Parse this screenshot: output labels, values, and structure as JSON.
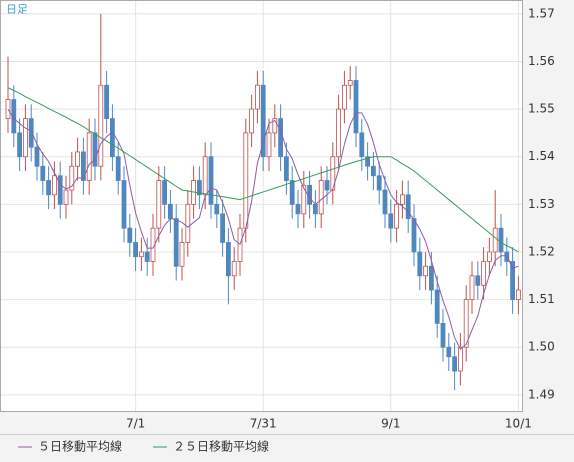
{
  "chart_data": {
    "type": "candlestick",
    "label": "日足",
    "categories": [
      null,
      null,
      null,
      null,
      null,
      null,
      null,
      null,
      null,
      null,
      null,
      null,
      null,
      null,
      null,
      null,
      null,
      null,
      null,
      null,
      null,
      null,
      "7/1",
      null,
      null,
      null,
      null,
      null,
      null,
      null,
      null,
      null,
      null,
      null,
      null,
      null,
      null,
      null,
      null,
      null,
      null,
      null,
      null,
      null,
      "7/31",
      null,
      null,
      null,
      null,
      null,
      null,
      null,
      null,
      null,
      null,
      null,
      null,
      null,
      null,
      null,
      null,
      null,
      null,
      null,
      null,
      null,
      "9/1",
      null,
      null,
      null,
      null,
      null,
      null,
      null,
      null,
      null,
      null,
      null,
      null,
      null,
      null,
      null,
      null,
      null,
      null,
      null,
      null,
      null,
      "10/1"
    ],
    "open": [
      1.548,
      1.552,
      1.545,
      1.54,
      1.548,
      1.542,
      1.538,
      1.535,
      1.532,
      1.536,
      1.53,
      1.533,
      1.538,
      1.541,
      1.535,
      1.545,
      1.538,
      1.555,
      1.548,
      1.54,
      1.535,
      1.525,
      1.522,
      1.519,
      1.52,
      1.518,
      1.525,
      1.535,
      1.53,
      1.527,
      1.517,
      1.522,
      1.53,
      1.535,
      1.532,
      1.54,
      1.53,
      1.528,
      1.522,
      1.515,
      1.518,
      1.525,
      1.545,
      1.55,
      1.555,
      1.54,
      1.545,
      1.548,
      1.54,
      1.535,
      1.53,
      1.528,
      1.534,
      1.53,
      1.528,
      1.535,
      1.533,
      1.54,
      1.55,
      1.555,
      1.556,
      1.545,
      1.54,
      1.538,
      1.536,
      1.533,
      1.528,
      1.525,
      1.53,
      1.532,
      1.527,
      1.52,
      1.515,
      1.517,
      1.512,
      1.505,
      1.5,
      1.498,
      1.495,
      1.5,
      1.51,
      1.515,
      1.513,
      1.518,
      1.52,
      1.525,
      1.52,
      1.518,
      1.51
    ],
    "high": [
      1.561,
      1.555,
      1.548,
      1.551,
      1.551,
      1.545,
      1.541,
      1.538,
      1.539,
      1.539,
      1.536,
      1.541,
      1.544,
      1.544,
      1.548,
      1.548,
      1.57,
      1.558,
      1.551,
      1.543,
      1.538,
      1.528,
      1.525,
      1.523,
      1.523,
      1.528,
      1.538,
      1.538,
      1.533,
      1.53,
      1.525,
      1.533,
      1.538,
      1.538,
      1.543,
      1.543,
      1.533,
      1.531,
      1.525,
      1.521,
      1.528,
      1.548,
      1.553,
      1.558,
      1.558,
      1.548,
      1.551,
      1.551,
      1.543,
      1.538,
      1.533,
      1.537,
      1.537,
      1.533,
      1.538,
      1.538,
      1.543,
      1.553,
      1.558,
      1.559,
      1.559,
      1.548,
      1.543,
      1.541,
      1.539,
      1.536,
      1.531,
      1.533,
      1.535,
      1.535,
      1.53,
      1.523,
      1.52,
      1.52,
      1.515,
      1.508,
      1.503,
      1.501,
      1.503,
      1.513,
      1.518,
      1.518,
      1.521,
      1.523,
      1.533,
      1.528,
      1.523,
      1.521,
      1.515
    ],
    "low": [
      1.545,
      1.542,
      1.537,
      1.537,
      1.539,
      1.535,
      1.532,
      1.529,
      1.529,
      1.527,
      1.527,
      1.53,
      1.535,
      1.532,
      1.532,
      1.535,
      1.535,
      1.545,
      1.537,
      1.532,
      1.522,
      1.519,
      1.516,
      1.516,
      1.515,
      1.515,
      1.522,
      1.527,
      1.524,
      1.514,
      1.514,
      1.519,
      1.527,
      1.529,
      1.529,
      1.527,
      1.525,
      1.519,
      1.509,
      1.512,
      1.515,
      1.522,
      1.542,
      1.547,
      1.537,
      1.537,
      1.542,
      1.537,
      1.532,
      1.527,
      1.525,
      1.525,
      1.527,
      1.525,
      1.525,
      1.53,
      1.53,
      1.537,
      1.547,
      1.552,
      1.542,
      1.537,
      1.535,
      1.533,
      1.53,
      1.525,
      1.522,
      1.522,
      1.527,
      1.524,
      1.517,
      1.512,
      1.512,
      1.509,
      1.502,
      1.497,
      1.495,
      1.491,
      1.492,
      1.497,
      1.507,
      1.51,
      1.51,
      1.515,
      1.517,
      1.517,
      1.515,
      1.507,
      1.507
    ],
    "close": [
      1.552,
      1.545,
      1.54,
      1.548,
      1.542,
      1.538,
      1.535,
      1.532,
      1.536,
      1.53,
      1.533,
      1.538,
      1.541,
      1.535,
      1.545,
      1.538,
      1.555,
      1.548,
      1.54,
      1.535,
      1.525,
      1.522,
      1.519,
      1.52,
      1.518,
      1.525,
      1.535,
      1.53,
      1.527,
      1.517,
      1.522,
      1.53,
      1.535,
      1.532,
      1.54,
      1.53,
      1.528,
      1.522,
      1.515,
      1.518,
      1.525,
      1.545,
      1.55,
      1.555,
      1.54,
      1.545,
      1.548,
      1.54,
      1.535,
      1.53,
      1.528,
      1.534,
      1.53,
      1.528,
      1.535,
      1.533,
      1.54,
      1.55,
      1.555,
      1.556,
      1.545,
      1.54,
      1.538,
      1.536,
      1.533,
      1.528,
      1.525,
      1.53,
      1.532,
      1.527,
      1.52,
      1.515,
      1.517,
      1.512,
      1.505,
      1.5,
      1.498,
      1.495,
      1.5,
      1.51,
      1.515,
      1.513,
      1.518,
      1.52,
      1.525,
      1.52,
      1.518,
      1.51,
      1.512
    ],
    "up_color": "#c0504d",
    "down_color": "#4f87bf",
    "series": [
      {
        "name": "５日移動平均線",
        "color": "#8e5ca8",
        "values": [
          1.55,
          1.548,
          1.547,
          1.546,
          1.5454,
          1.5426,
          1.5406,
          1.539,
          1.5366,
          1.5342,
          1.5332,
          1.5338,
          1.5356,
          1.5354,
          1.5384,
          1.5394,
          1.5428,
          1.5442,
          1.5452,
          1.5432,
          1.5406,
          1.534,
          1.5282,
          1.5242,
          1.5208,
          1.5208,
          1.5234,
          1.5256,
          1.527,
          1.5268,
          1.5262,
          1.5252,
          1.5262,
          1.5272,
          1.5318,
          1.5334,
          1.533,
          1.5304,
          1.527,
          1.5226,
          1.5216,
          1.525,
          1.5306,
          1.5386,
          1.543,
          1.547,
          1.5476,
          1.5456,
          1.5416,
          1.5396,
          1.5362,
          1.5334,
          1.5314,
          1.53,
          1.531,
          1.532,
          1.5332,
          1.5372,
          1.5426,
          1.5468,
          1.5492,
          1.5492,
          1.5468,
          1.543,
          1.5384,
          1.535,
          1.532,
          1.5304,
          1.5296,
          1.5284,
          1.5268,
          1.5248,
          1.5222,
          1.5182,
          1.5138,
          1.5098,
          1.5064,
          1.502,
          1.4996,
          1.5006,
          1.5036,
          1.5066,
          1.5112,
          1.5152,
          1.5182,
          1.5192,
          1.5192,
          1.5166,
          1.517
        ]
      },
      {
        "name": "２５日移動平均線",
        "color": "#3a9a5a",
        "values": [
          1.5545,
          1.5539,
          1.5533,
          1.5526,
          1.552,
          1.5514,
          1.5508,
          1.5501,
          1.5495,
          1.5489,
          1.5483,
          1.5476,
          1.547,
          1.5463,
          1.5455,
          1.5448,
          1.544,
          1.5433,
          1.5425,
          1.5418,
          1.541,
          1.5402,
          1.5394,
          1.5386,
          1.5378,
          1.537,
          1.5362,
          1.5354,
          1.5346,
          1.5338,
          1.533,
          1.5328,
          1.5326,
          1.5324,
          1.5322,
          1.532,
          1.5318,
          1.5316,
          1.5314,
          1.5312,
          1.531,
          1.5314,
          1.5318,
          1.5322,
          1.5326,
          1.533,
          1.5334,
          1.5338,
          1.5342,
          1.5346,
          1.535,
          1.5354,
          1.5358,
          1.5362,
          1.5366,
          1.537,
          1.5374,
          1.5378,
          1.5382,
          1.5386,
          1.539,
          1.5393,
          1.5397,
          1.54,
          1.54,
          1.54,
          1.54,
          1.5393,
          1.5385,
          1.5378,
          1.537,
          1.536,
          1.535,
          1.534,
          1.533,
          1.532,
          1.531,
          1.53,
          1.529,
          1.528,
          1.527,
          1.526,
          1.525,
          1.524,
          1.523,
          1.522,
          1.5213,
          1.5207,
          1.52
        ]
      }
    ],
    "ylim": [
      1.4864,
      1.5729
    ],
    "yticks": [
      1.49,
      {
        "value": 1.5,
        "label": "1.50"
      },
      1.51,
      1.52,
      1.53,
      1.54,
      1.55,
      1.56,
      1.57
    ],
    "grid": true
  }
}
